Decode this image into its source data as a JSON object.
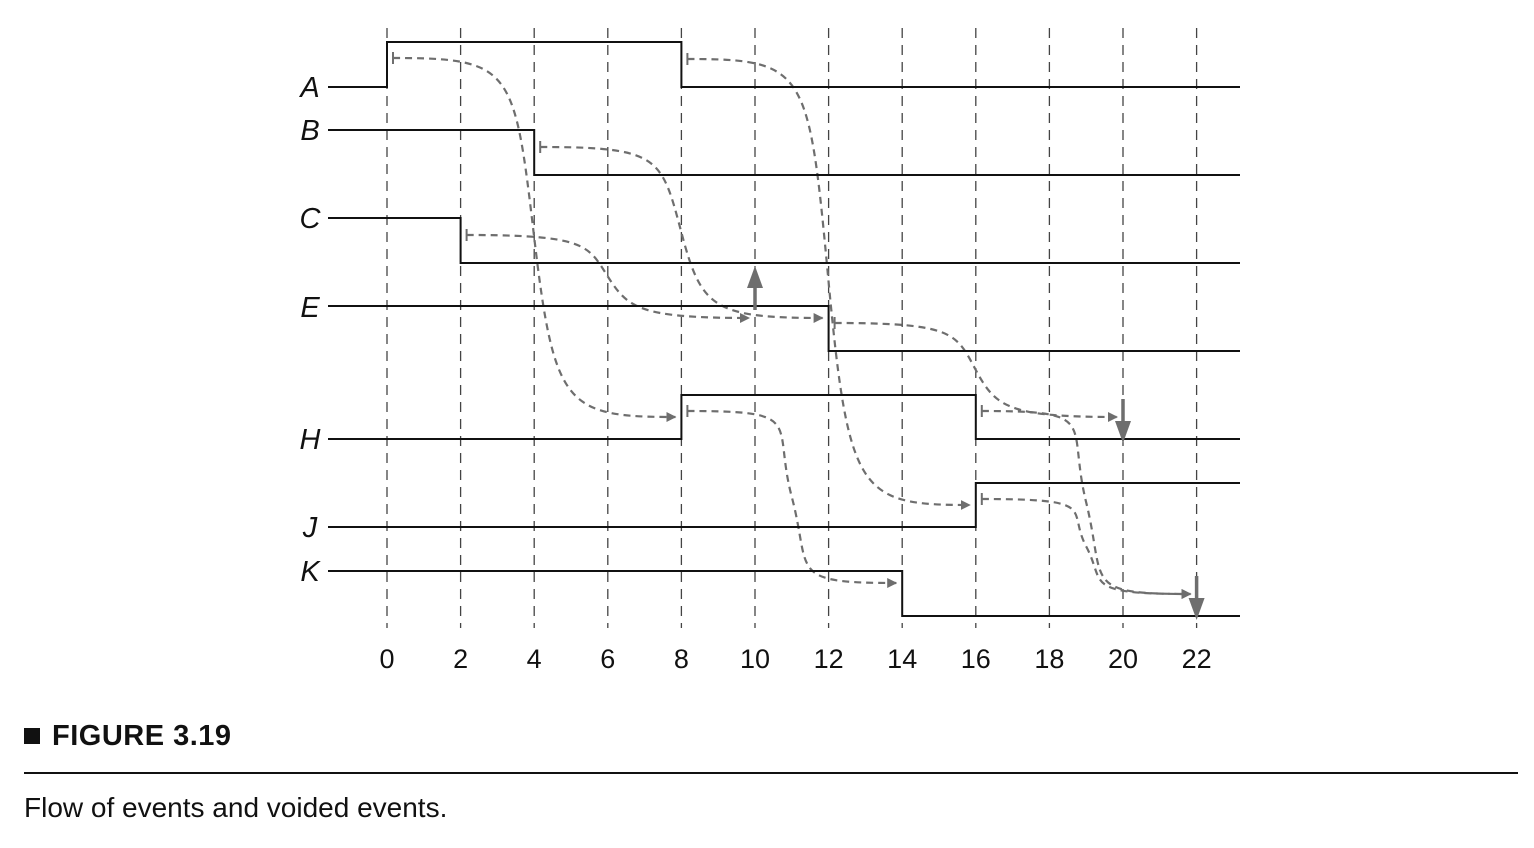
{
  "diagram": {
    "signals": [
      {
        "name": "A",
        "initial": 0,
        "transitions": [
          0,
          8
        ]
      },
      {
        "name": "B",
        "initial": 1,
        "transitions": [
          4
        ]
      },
      {
        "name": "C",
        "initial": 1,
        "transitions": [
          2
        ]
      },
      {
        "name": "E",
        "initial": 1,
        "transitions": [
          12
        ]
      },
      {
        "name": "H",
        "initial": 0,
        "transitions": [
          8,
          16
        ]
      },
      {
        "name": "J",
        "initial": 0,
        "transitions": [
          16
        ]
      },
      {
        "name": "K",
        "initial": 1,
        "transitions": [
          14
        ]
      }
    ],
    "time_ticks": [
      "0",
      "2",
      "4",
      "6",
      "8",
      "10",
      "12",
      "14",
      "16",
      "18",
      "20",
      "22"
    ],
    "event_flows": [
      {
        "from_signal": "A",
        "from_time": 0,
        "to_signal": "H",
        "to_time": 8
      },
      {
        "from_signal": "A",
        "from_time": 8,
        "to_signal": "J",
        "to_time": 16
      },
      {
        "from_signal": "B",
        "from_time": 4,
        "to_signal": "E",
        "to_time": 12
      },
      {
        "from_signal": "C",
        "from_time": 2,
        "to_signal": "E",
        "to_time": 10
      },
      {
        "from_signal": "E",
        "from_time": 12,
        "to_signal": "H",
        "to_time": 20
      },
      {
        "from_signal": "H",
        "from_time": 8,
        "to_signal": "K",
        "to_time": 14
      },
      {
        "from_signal": "H",
        "from_time": 16,
        "to_signal": "K",
        "to_time": 22
      },
      {
        "from_signal": "J",
        "from_time": 16,
        "to_signal": "K",
        "to_time": 22
      }
    ],
    "voided_event_markers": [
      {
        "signal": "E",
        "time": 10,
        "direction": "up"
      },
      {
        "signal": "H",
        "time": 20,
        "direction": "down"
      },
      {
        "signal": "K",
        "time": 22,
        "direction": "down"
      }
    ],
    "colors": {
      "waveform": "#111111",
      "event_flow": "#6e6e6e",
      "time_gridline": "#444444"
    }
  },
  "figure": {
    "title": "FIGURE 3.19",
    "caption": "Flow of events and voided events."
  }
}
